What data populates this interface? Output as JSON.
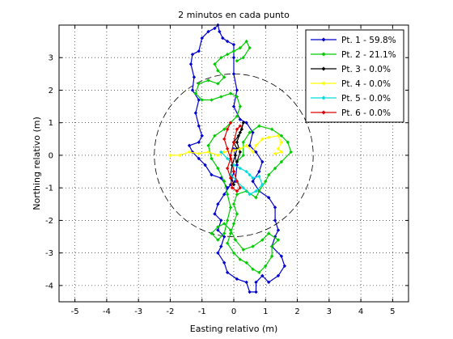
{
  "chart_data": {
    "type": "line",
    "title": "2 minutos en cada punto",
    "xlabel": "Easting relativo (m)",
    "ylabel": "Northing relativo (m)",
    "xlim": [
      -5.5,
      5.5
    ],
    "ylim": [
      -4.5,
      4
    ],
    "xticks": [
      -5,
      -4,
      -3,
      -2,
      -1,
      0,
      1,
      2,
      3,
      4,
      5
    ],
    "yticks": [
      -4,
      -3,
      -2,
      -1,
      0,
      1,
      2,
      3
    ],
    "grid": true,
    "legend_position": "top-right",
    "circle": {
      "center": [
        0,
        0
      ],
      "radius": 2.5,
      "style": "dashed"
    },
    "series": [
      {
        "name": "Pt. 1 - 59.8%",
        "color": "#0000cc",
        "points": [
          [
            0,
            0.2
          ],
          [
            0.1,
            -0.3
          ],
          [
            0.05,
            -0.8
          ],
          [
            -0.2,
            -1.0
          ],
          [
            -0.4,
            -0.7
          ],
          [
            -0.7,
            -0.6
          ],
          [
            -0.9,
            -0.3
          ],
          [
            -1.1,
            -0.1
          ],
          [
            -1.3,
            0.1
          ],
          [
            -1.4,
            0.3
          ],
          [
            -1.1,
            0.4
          ],
          [
            -1.0,
            0.6
          ],
          [
            -1.1,
            0.9
          ],
          [
            -1.2,
            1.3
          ],
          [
            -1.1,
            1.7
          ],
          [
            -1.3,
            2.0
          ],
          [
            -1.25,
            2.4
          ],
          [
            -1.35,
            2.8
          ],
          [
            -1.3,
            3.1
          ],
          [
            -1.1,
            3.2
          ],
          [
            -1.0,
            3.6
          ],
          [
            -0.8,
            3.8
          ],
          [
            -0.6,
            3.9
          ],
          [
            -0.5,
            4.0
          ],
          [
            -0.45,
            3.8
          ],
          [
            -0.35,
            3.6
          ],
          [
            -0.2,
            3.5
          ],
          [
            0,
            3.4
          ],
          [
            0,
            3.0
          ],
          [
            0,
            2.5
          ],
          [
            0.1,
            2.0
          ],
          [
            0,
            1.5
          ],
          [
            0.2,
            1.1
          ],
          [
            0.4,
            1.0
          ],
          [
            0.6,
            0.7
          ],
          [
            0.5,
            0.3
          ],
          [
            0.7,
            0.1
          ],
          [
            0.9,
            -0.2
          ],
          [
            0.8,
            -0.5
          ],
          [
            0.6,
            -0.8
          ],
          [
            0.8,
            -1.1
          ],
          [
            1.1,
            -1.3
          ],
          [
            1.3,
            -1.6
          ],
          [
            1.3,
            -2.0
          ],
          [
            1.4,
            -2.3
          ],
          [
            1.3,
            -2.5
          ],
          [
            1.2,
            -2.8
          ],
          [
            1.5,
            -3.1
          ],
          [
            1.6,
            -3.4
          ],
          [
            1.4,
            -3.7
          ],
          [
            1.1,
            -3.9
          ],
          [
            0.9,
            -3.7
          ],
          [
            0.7,
            -3.9
          ],
          [
            0.7,
            -4.2
          ],
          [
            0.5,
            -4.2
          ],
          [
            0.4,
            -3.9
          ],
          [
            0.1,
            -3.8
          ],
          [
            -0.2,
            -3.6
          ],
          [
            -0.3,
            -3.3
          ],
          [
            -0.5,
            -3.0
          ],
          [
            -0.4,
            -2.8
          ],
          [
            -0.3,
            -2.5
          ],
          [
            -0.5,
            -2.3
          ],
          [
            -0.4,
            -2.0
          ],
          [
            -0.6,
            -1.8
          ],
          [
            -0.5,
            -1.5
          ],
          [
            -0.3,
            -1.2
          ],
          [
            -0.1,
            -0.9
          ],
          [
            0,
            -0.5
          ]
        ]
      },
      {
        "name": "Pt. 2 - 21.1%",
        "color": "#00cc00",
        "points": [
          [
            0.1,
            -0.2
          ],
          [
            0.3,
            0.0
          ],
          [
            0.3,
            0.4
          ],
          [
            0.5,
            0.7
          ],
          [
            0.8,
            0.9
          ],
          [
            1.2,
            0.8
          ],
          [
            1.5,
            0.6
          ],
          [
            1.7,
            0.4
          ],
          [
            1.8,
            0.1
          ],
          [
            1.5,
            -0.2
          ],
          [
            1.3,
            -0.4
          ],
          [
            1.1,
            -0.6
          ],
          [
            1.0,
            -0.8
          ],
          [
            0.8,
            -1.1
          ],
          [
            0.7,
            -1.3
          ],
          [
            0.4,
            -1.1
          ],
          [
            0.1,
            -1.2
          ],
          [
            0,
            -1.5
          ],
          [
            0.1,
            -1.8
          ],
          [
            0,
            -2.1
          ],
          [
            -0.1,
            -2.4
          ],
          [
            -0.2,
            -2.7
          ],
          [
            0,
            -3.0
          ],
          [
            0.2,
            -3.2
          ],
          [
            0.4,
            -3.3
          ],
          [
            0.6,
            -3.5
          ],
          [
            0.8,
            -3.6
          ],
          [
            1.0,
            -3.4
          ],
          [
            1.2,
            -3.1
          ],
          [
            1.2,
            -2.8
          ],
          [
            1.4,
            -2.6
          ],
          [
            1.1,
            -2.4
          ],
          [
            0.9,
            -2.6
          ],
          [
            0.6,
            -2.8
          ],
          [
            0.3,
            -2.9
          ],
          [
            0.05,
            -2.6
          ],
          [
            -0.1,
            -2.3
          ],
          [
            -0.3,
            -2.1
          ],
          [
            -0.5,
            -2.2
          ],
          [
            -0.7,
            -2.4
          ],
          [
            -0.5,
            -2.6
          ],
          [
            -0.3,
            -2.4
          ],
          [
            -0.2,
            -2.0
          ],
          [
            -0.1,
            -1.6
          ],
          [
            -0.2,
            -1.2
          ],
          [
            -0.3,
            -0.8
          ],
          [
            -0.5,
            -0.4
          ],
          [
            -0.7,
            -0.1
          ],
          [
            -0.8,
            0.3
          ],
          [
            -0.6,
            0.6
          ],
          [
            -0.3,
            0.8
          ],
          [
            -0.1,
            1.0
          ],
          [
            0.1,
            1.2
          ],
          [
            0.2,
            1.5
          ],
          [
            0.1,
            1.8
          ],
          [
            -0.1,
            1.9
          ],
          [
            -0.4,
            1.8
          ],
          [
            -0.7,
            1.7
          ],
          [
            -1.0,
            1.7
          ],
          [
            -1.2,
            1.9
          ],
          [
            -1.1,
            2.2
          ],
          [
            -0.8,
            2.3
          ],
          [
            -0.5,
            2.2
          ],
          [
            -0.3,
            2.4
          ],
          [
            -0.5,
            2.6
          ],
          [
            -0.6,
            2.8
          ],
          [
            -0.4,
            3.0
          ],
          [
            -0.2,
            3.1
          ],
          [
            0,
            3.2
          ],
          [
            0.2,
            3.3
          ],
          [
            0.4,
            3.5
          ],
          [
            0.5,
            3.3
          ],
          [
            0.3,
            3.0
          ],
          [
            0.1,
            2.9
          ]
        ]
      },
      {
        "name": "Pt. 3 - 0.0%",
        "color": "#000000",
        "points": [
          [
            0,
            -0.9
          ],
          [
            -0.1,
            -0.6
          ],
          [
            -0.05,
            -0.3
          ],
          [
            0.05,
            0.0
          ],
          [
            0.1,
            0.2
          ],
          [
            0,
            0.4
          ],
          [
            0.15,
            0.6
          ],
          [
            0.25,
            0.8
          ],
          [
            0.3,
            1.0
          ],
          [
            0.2,
            0.7
          ],
          [
            0.1,
            0.4
          ],
          [
            0.2,
            0.1
          ],
          [
            0.1,
            -0.2
          ]
        ]
      },
      {
        "name": "Pt. 4 - 0.0%",
        "color": "#ffff00",
        "points": [
          [
            -2.0,
            0.0
          ],
          [
            -1.7,
            0.0
          ],
          [
            -1.4,
            0.1
          ],
          [
            -1.1,
            0.05
          ],
          [
            -0.8,
            0.1
          ],
          [
            -0.5,
            0.0
          ],
          [
            -0.3,
            0.1
          ],
          [
            0,
            0.15
          ],
          [
            0.2,
            0.2
          ],
          [
            0.4,
            0.3
          ],
          [
            0.6,
            0.1
          ],
          [
            0.7,
            0.3
          ],
          [
            0.9,
            0.5
          ],
          [
            1.1,
            0.55
          ],
          [
            1.4,
            0.6
          ],
          [
            1.5,
            0.4
          ],
          [
            1.4,
            0.2
          ],
          [
            1.5,
            0.1
          ],
          [
            1.3,
            0.05
          ]
        ]
      },
      {
        "name": "Pt. 5 - 0.0%",
        "color": "#00dddd",
        "points": [
          [
            -0.4,
            0.1
          ],
          [
            -0.2,
            -0.1
          ],
          [
            0,
            -0.3
          ],
          [
            0.2,
            -0.4
          ],
          [
            0.4,
            -0.5
          ],
          [
            0.5,
            -0.6
          ],
          [
            0.6,
            -0.7
          ],
          [
            0.8,
            -0.65
          ],
          [
            0.9,
            -0.9
          ],
          [
            0.7,
            -1.1
          ],
          [
            0.5,
            -1.2
          ],
          [
            0.3,
            -1.0
          ],
          [
            0.1,
            -0.8
          ],
          [
            -0.1,
            -0.6
          ]
        ]
      },
      {
        "name": "Pt. 6 - 0.0%",
        "color": "#dd0000",
        "points": [
          [
            -0.1,
            1.0
          ],
          [
            -0.2,
            0.8
          ],
          [
            -0.3,
            0.5
          ],
          [
            -0.2,
            0.2
          ],
          [
            -0.1,
            -0.1
          ],
          [
            -0.2,
            -0.4
          ],
          [
            -0.1,
            -0.7
          ],
          [
            -0.05,
            -1.0
          ],
          [
            0.1,
            -1.1
          ],
          [
            0.2,
            -1.0
          ],
          [
            0.1,
            -0.8
          ],
          [
            0,
            -0.5
          ],
          [
            -0.1,
            0.0
          ],
          [
            0,
            0.4
          ],
          [
            0.1,
            0.8
          ],
          [
            0.2,
            0.9
          ]
        ]
      }
    ]
  }
}
